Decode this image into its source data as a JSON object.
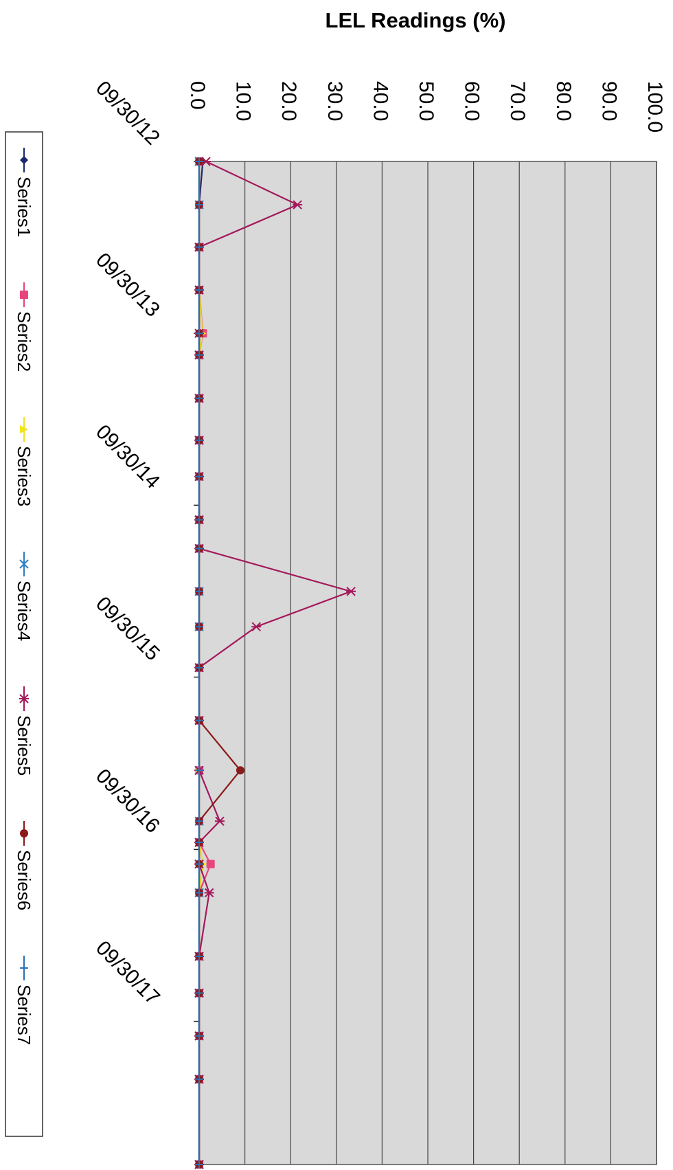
{
  "chart_data": {
    "type": "line",
    "title": "LEL Readings (%)",
    "xlabel": "",
    "ylabel": "",
    "ylim": [
      0,
      100
    ],
    "yticks": [
      "0.0",
      "10.0",
      "20.0",
      "30.0",
      "40.0",
      "50.0",
      "60.0",
      "70.0",
      "80.0",
      "90.0",
      "100.0"
    ],
    "xlim": [
      "2012-09-30",
      "2018-07-31"
    ],
    "xticks": [
      "09/30/12",
      "09/30/13",
      "09/30/14",
      "09/30/15",
      "09/30/16",
      "09/30/17"
    ],
    "grid": true,
    "legend_position": "bottom",
    "dates": [
      "2012-09-30",
      "2012-12-31",
      "2013-03-31",
      "2013-06-30",
      "2013-09-30",
      "2013-11-15",
      "2014-02-15",
      "2014-05-15",
      "2014-07-31",
      "2014-10-31",
      "2014-12-31",
      "2015-04-01",
      "2015-06-15",
      "2015-09-10",
      "2015-12-31",
      "2016-04-15",
      "2016-08-01",
      "2016-09-15",
      "2016-10-31",
      "2016-12-31",
      "2017-05-15",
      "2017-08-01",
      "2017-10-31",
      "2018-01-31",
      "2018-07-31"
    ],
    "series": [
      {
        "name": "Series1",
        "color": "#1c2a6b",
        "marker": "diamond",
        "values": [
          0.8,
          0,
          0,
          0,
          0,
          0,
          0,
          0,
          0,
          0,
          0,
          0,
          0,
          0,
          0,
          0,
          0,
          0,
          0,
          0,
          0,
          0,
          0,
          0,
          0
        ]
      },
      {
        "name": "Series2",
        "color": "#e8467a",
        "marker": "square",
        "values": [
          0,
          0,
          0,
          0,
          0.8,
          0,
          0,
          0,
          0,
          0,
          0,
          0,
          0,
          0,
          0,
          0,
          0,
          0,
          2.5,
          0,
          0,
          0,
          0,
          0,
          0
        ]
      },
      {
        "name": "Series3",
        "color": "#f0e41e",
        "marker": "triangle",
        "values": [
          0,
          0,
          0,
          0,
          0.7,
          0,
          0,
          0,
          0,
          0,
          0,
          0,
          0,
          0,
          0,
          0,
          0,
          0,
          0.8,
          0,
          0,
          0,
          0,
          0,
          0
        ]
      },
      {
        "name": "Series4",
        "color": "#2c7fc0",
        "marker": "x",
        "values": [
          0,
          0,
          0,
          0,
          0,
          0,
          0,
          0,
          0,
          0,
          0,
          0,
          0,
          0,
          0,
          0,
          0,
          0,
          0,
          0,
          0,
          0,
          0,
          0,
          0
        ]
      },
      {
        "name": "Series5",
        "color": "#a3195b",
        "marker": "star",
        "values": [
          1.5,
          21.5,
          0,
          0,
          0,
          0,
          0,
          0,
          0,
          0,
          0,
          33.2,
          12.5,
          0,
          0,
          0,
          4.5,
          0,
          0,
          2.2,
          0,
          0,
          0,
          0,
          0
        ]
      },
      {
        "name": "Series6",
        "color": "#8b1a1a",
        "marker": "circle",
        "values": [
          0,
          0,
          0,
          0,
          0,
          0,
          0,
          0,
          0,
          0,
          0,
          0,
          0,
          0,
          0,
          9.0,
          0,
          0,
          0,
          0,
          0,
          0,
          0,
          0,
          0
        ]
      },
      {
        "name": "Series7",
        "color": "#2a72b5",
        "marker": "plus",
        "values": [
          0,
          0,
          0,
          0,
          0,
          0,
          0,
          0,
          0,
          0,
          0,
          0,
          0,
          0,
          0,
          0,
          0,
          0,
          0,
          0,
          0,
          0,
          0,
          0,
          0
        ]
      }
    ]
  }
}
